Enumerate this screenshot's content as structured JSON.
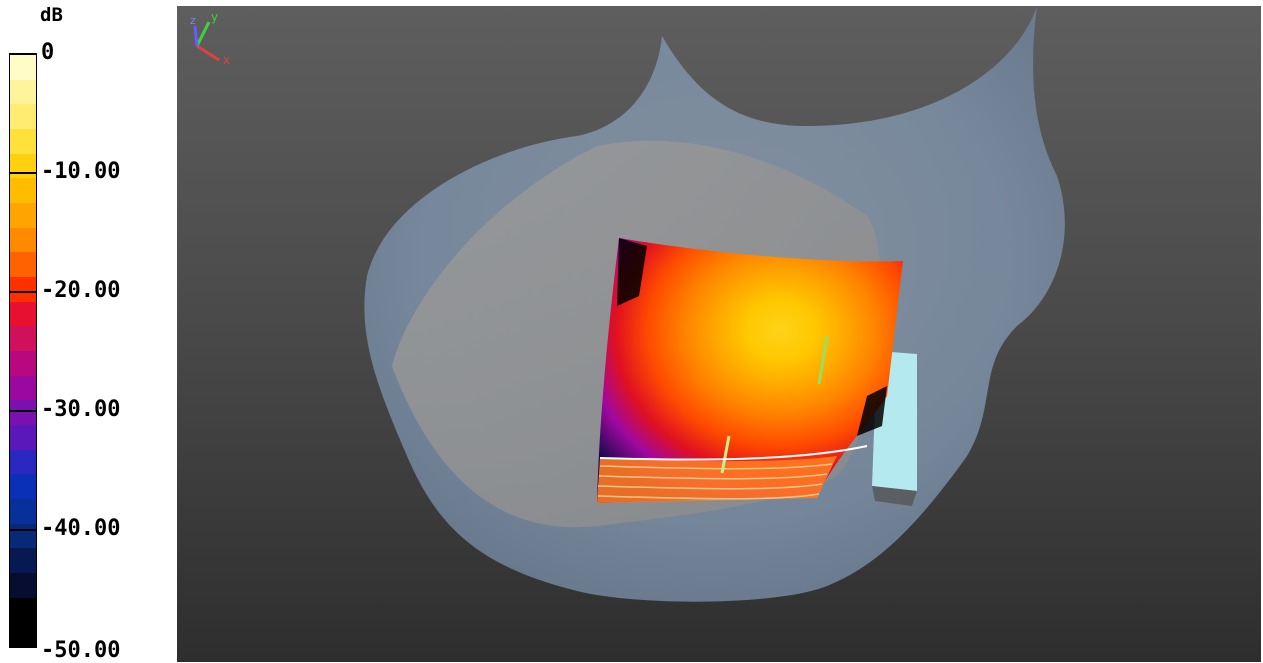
{
  "legend": {
    "unit": "dB",
    "ticks": [
      {
        "label": "0",
        "value": 0
      },
      {
        "label": "-10.00",
        "value": -10
      },
      {
        "label": "-20.00",
        "value": -20
      },
      {
        "label": "-30.00",
        "value": -30
      },
      {
        "label": "-40.00",
        "value": -40
      },
      {
        "label": "-50.00",
        "value": -50
      }
    ],
    "range": [
      -50,
      0
    ],
    "colors": [
      "#fffcc8",
      "#fff49c",
      "#ffec70",
      "#ffe13c",
      "#ffd010",
      "#ffbc00",
      "#ffa400",
      "#ff8a00",
      "#ff6200",
      "#ff3000",
      "#e81030",
      "#d0105a",
      "#b80880",
      "#9a08a0",
      "#7a10b0",
      "#5a18b8",
      "#2a28c0",
      "#0a30b8",
      "#083098",
      "#082878",
      "#081850",
      "#080c30",
      "#000000",
      "#000000"
    ]
  },
  "viewport": {
    "background_top": "#5e5e5e",
    "background_bottom": "#2e2e2e",
    "body_color": "#7d90a8",
    "axes": {
      "x_label": "x",
      "y_label": "y",
      "z_label": "z"
    }
  }
}
